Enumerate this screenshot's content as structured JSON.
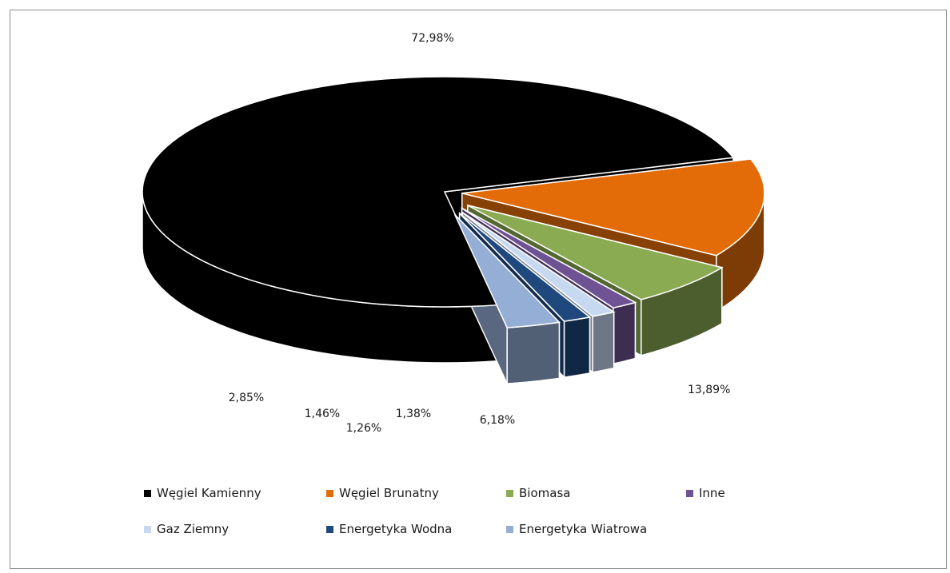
{
  "chart_data": {
    "type": "pie",
    "three_d": true,
    "exploded": true,
    "title": "",
    "legend_position": "bottom",
    "slices": [
      {
        "name": "Węgiel Kamienny",
        "value": 72.98,
        "label": "72,98%",
        "color": "#000000"
      },
      {
        "name": "Węgiel Brunatny",
        "value": 13.89,
        "label": "13,89%",
        "color": "#e36c09"
      },
      {
        "name": "Biomasa",
        "value": 6.18,
        "label": "6,18%",
        "color": "#8bab52"
      },
      {
        "name": "Inne",
        "value": 1.38,
        "label": "1,38%",
        "color": "#6f5293"
      },
      {
        "name": "Gaz Ziemny",
        "value": 1.26,
        "label": "1,26%",
        "color": "#c6d9f1"
      },
      {
        "name": "Energetyka Wodna",
        "value": 1.46,
        "label": "1,46%",
        "color": "#1f497d"
      },
      {
        "name": "Energetyka Wiatrowa",
        "value": 2.85,
        "label": "2,85%",
        "color": "#95aed6"
      }
    ]
  }
}
